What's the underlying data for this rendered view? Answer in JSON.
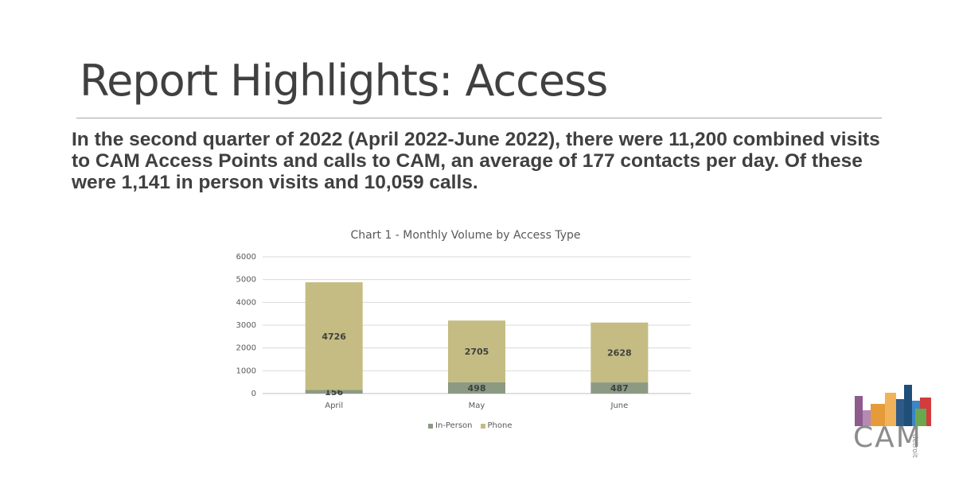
{
  "slide": {
    "title": "Report Highlights: Access",
    "summary": "In the second quarter of 2022 (April 2022-June 2022), there were 11,200 combined visits to CAM Access Points and calls to CAM, an average of 177 contacts per day.  Of these were 1,141 in person visits and 10,059 calls."
  },
  "chart_data": {
    "type": "bar",
    "stacked": true,
    "title": "Chart 1 - Monthly Volume by Access Type",
    "categories": [
      "April",
      "May",
      "June"
    ],
    "series": [
      {
        "name": "In-Person",
        "values": [
          156,
          498,
          487
        ],
        "color": "#8c9a84"
      },
      {
        "name": "Phone",
        "values": [
          4726,
          2705,
          2628
        ],
        "color": "#c4bc82"
      }
    ],
    "ylim": [
      0,
      6000
    ],
    "yticks": [
      "6000",
      "5000",
      "4000",
      "3000",
      "2000",
      "1000",
      "0"
    ],
    "grid": true,
    "legend_position": "bottom"
  },
  "logo": {
    "text": "CAM",
    "subtext": "detroit",
    "colors": [
      "#8e5b8f",
      "#e69b3a",
      "#2e5a87",
      "#d23c3c",
      "#6aa84f",
      "#3d85c6"
    ]
  }
}
